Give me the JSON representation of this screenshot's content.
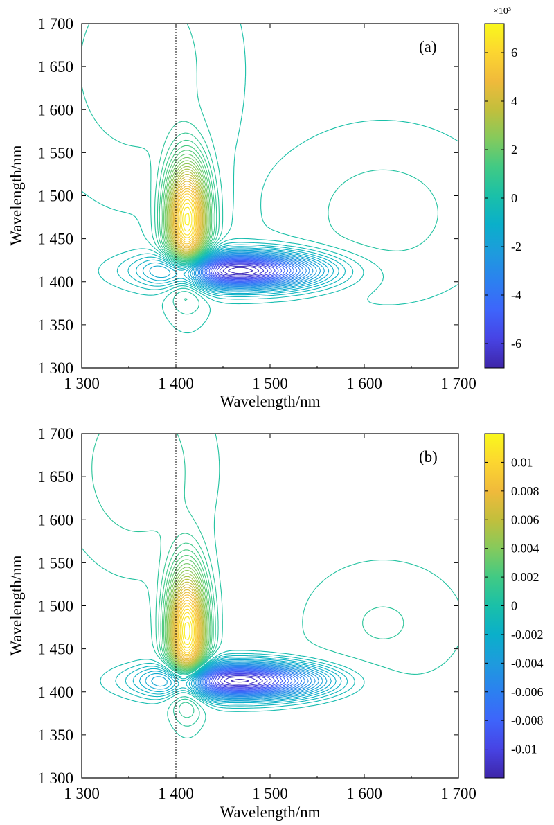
{
  "chart_data": [
    {
      "type": "heatmap",
      "subtype": "contour",
      "panel_label": "(a)",
      "xlabel": "Wavelength/nm",
      "ylabel": "Wavelength/nm",
      "xlim": [
        1300,
        1700
      ],
      "ylim": [
        1300,
        1700
      ],
      "x_ticks": [
        1300,
        1400,
        1500,
        1600,
        1700
      ],
      "x_tick_labels": [
        "1 300",
        "1 400",
        "1 500",
        "1 600",
        "1 700"
      ],
      "y_ticks": [
        1300,
        1350,
        1400,
        1450,
        1500,
        1550,
        1600,
        1650,
        1700
      ],
      "y_tick_labels": [
        "1 300",
        "1 350",
        "1 400",
        "1 450",
        "1 500",
        "1 550",
        "1 600",
        "1 650",
        "1 700"
      ],
      "reference_line_x": 1400,
      "colorbar": {
        "range": [
          -7,
          7.2
        ],
        "multiplier_label": "×10³",
        "ticks": [
          6,
          4,
          2,
          0,
          -2,
          -4,
          -6
        ],
        "tick_labels": [
          "6",
          "4",
          "2",
          "0",
          "-2",
          "-4",
          "-6"
        ]
      },
      "features": [
        {
          "kind": "positive_peak",
          "x": 1412,
          "y": 1472,
          "value": 7.0,
          "sx": 15,
          "sy": 45
        },
        {
          "kind": "negative_peak",
          "x": 1468,
          "y": 1413,
          "value": -7.0,
          "sx": 55,
          "sy": 14
        },
        {
          "kind": "positive_ridge",
          "x": 1360,
          "y": 1650,
          "value": 0.6,
          "sx": 60,
          "sy": 90
        },
        {
          "kind": "positive_ridge",
          "x": 1620,
          "y": 1480,
          "value": 0.5,
          "sx": 70,
          "sy": 60
        }
      ]
    },
    {
      "type": "heatmap",
      "subtype": "contour",
      "panel_label": "(b)",
      "xlabel": "Wavelength/nm",
      "ylabel": "Wavelength/nm",
      "xlim": [
        1300,
        1700
      ],
      "ylim": [
        1300,
        1700
      ],
      "x_ticks": [
        1300,
        1400,
        1500,
        1600,
        1700
      ],
      "x_tick_labels": [
        "1 300",
        "1 400",
        "1 500",
        "1 600",
        "1 700"
      ],
      "y_ticks": [
        1300,
        1350,
        1400,
        1450,
        1500,
        1550,
        1600,
        1650,
        1700
      ],
      "y_tick_labels": [
        "1 300",
        "1 350",
        "1 400",
        "1 450",
        "1 500",
        "1 550",
        "1 600",
        "1 650",
        "1 700"
      ],
      "reference_line_x": 1400,
      "colorbar": {
        "range": [
          -0.012,
          0.012
        ],
        "multiplier_label": "",
        "ticks": [
          0.01,
          0.008,
          0.006,
          0.004,
          0.002,
          0,
          -0.002,
          -0.004,
          -0.006,
          -0.008,
          -0.01
        ],
        "tick_labels": [
          "0.01",
          "0.008",
          "0.006",
          "0.004",
          "0.002",
          "0",
          "-0.002",
          "-0.004",
          "-0.006",
          "-0.008",
          "-0.01"
        ]
      },
      "features": [
        {
          "kind": "positive_peak",
          "x": 1412,
          "y": 1470,
          "value": 0.0118,
          "sx": 14,
          "sy": 48
        },
        {
          "kind": "negative_peak",
          "x": 1468,
          "y": 1413,
          "value": -0.0118,
          "sx": 58,
          "sy": 14
        },
        {
          "kind": "positive_ridge",
          "x": 1360,
          "y": 1660,
          "value": 0.0012,
          "sx": 60,
          "sy": 90
        },
        {
          "kind": "positive_ridge",
          "x": 1620,
          "y": 1480,
          "value": 0.0009,
          "sx": 70,
          "sy": 60
        }
      ]
    }
  ],
  "palette": [
    "#3e26a8",
    "#4743e4",
    "#3e64fb",
    "#2c80f0",
    "#1e9bdd",
    "#0aafca",
    "#1ac0a8",
    "#41ca84",
    "#85ca5c",
    "#c2bf3c",
    "#f0ba3b",
    "#fcd630",
    "#f9f81c"
  ]
}
